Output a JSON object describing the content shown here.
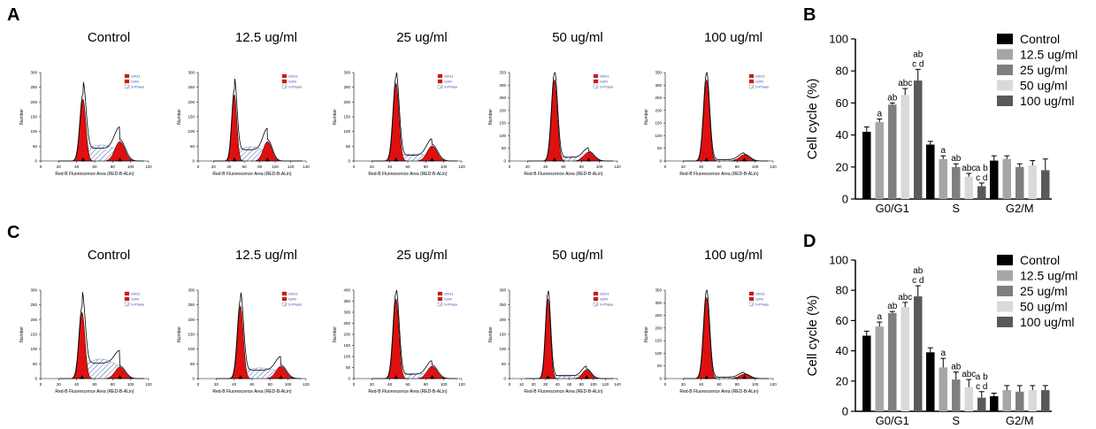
{
  "panels": {
    "A": {
      "letter": "A"
    },
    "B": {
      "letter": "B"
    },
    "C": {
      "letter": "C"
    },
    "D": {
      "letter": "D"
    }
  },
  "colors": {
    "g0g1_fill": "#e01010",
    "s_phase_hatch": "#4a5fb0",
    "trace": "#000000",
    "bar_control": "#000000",
    "bar_12_5": "#a6a6a6",
    "bar_25": "#7f7f7f",
    "bar_50": "#d9d9d9",
    "bar_100": "#595959"
  },
  "histogram_xlabel": "Red-B Fluorescence Area (RED-B-ALin)",
  "histogram_ylabel": "Number",
  "histogram_legend": [
    "G0G1",
    "G2M",
    "S-Phase"
  ],
  "chart_data": [
    {
      "type": "histogram",
      "panel": "A",
      "histograms": [
        {
          "title": "Control",
          "xticks": [
            "0",
            "20",
            "40",
            "60",
            "80",
            "100",
            "120"
          ],
          "yticks": [
            "0",
            "50",
            "100",
            "150",
            "200",
            "250",
            "300"
          ],
          "g1_peak_x": 47,
          "g2_peak_x": 88,
          "g1_height": 0.7,
          "g2_height": 0.22,
          "s_level": 0.18,
          "xmax": 120
        },
        {
          "title": "12.5 ug/ml",
          "xticks": [
            "0",
            "20",
            "40",
            "60",
            "80",
            "100",
            "120",
            "140"
          ],
          "yticks": [
            "0",
            "50",
            "100",
            "150",
            "200",
            "250",
            "300"
          ],
          "g1_peak_x": 47,
          "g2_peak_x": 90,
          "g1_height": 0.75,
          "g2_height": 0.22,
          "s_level": 0.16,
          "xmax": 140
        },
        {
          "title": "25 ug/ml",
          "xticks": [
            "0",
            "20",
            "40",
            "60",
            "80",
            "100",
            "120"
          ],
          "yticks": [
            "0",
            "50",
            "100",
            "150",
            "200",
            "250",
            "300"
          ],
          "g1_peak_x": 47,
          "g2_peak_x": 87,
          "g1_height": 0.88,
          "g2_height": 0.17,
          "s_level": 0.08,
          "xmax": 120
        },
        {
          "title": "50 ug/ml",
          "xticks": [
            "0",
            "20",
            "40",
            "60",
            "80",
            "100",
            "120"
          ],
          "yticks": [
            "0",
            "50",
            "100",
            "150",
            "200",
            "250",
            "300",
            "333"
          ],
          "g1_peak_x": 50,
          "g2_peak_x": 88,
          "g1_height": 0.92,
          "g2_height": 0.1,
          "s_level": 0.05,
          "xmax": 120
        },
        {
          "title": "100 ug/ml",
          "xticks": [
            "0",
            "20",
            "40",
            "60",
            "80",
            "100",
            "120"
          ],
          "yticks": [
            "0",
            "50",
            "100",
            "150",
            "200",
            "250",
            "300",
            "350"
          ],
          "g1_peak_x": 46,
          "g2_peak_x": 88,
          "g1_height": 0.92,
          "g2_height": 0.07,
          "s_level": 0.02,
          "xmax": 120
        }
      ]
    },
    {
      "type": "bar",
      "panel": "B",
      "categories": [
        "G0/G1",
        "S",
        "G2/M"
      ],
      "series": [
        {
          "name": "Control",
          "values": [
            42,
            34,
            24
          ],
          "errors": [
            3,
            2,
            3
          ]
        },
        {
          "name": "12.5 ug/ml",
          "values": [
            48,
            25,
            25
          ],
          "errors": [
            2,
            2,
            2
          ]
        },
        {
          "name": "25 ug/ml",
          "values": [
            59,
            20,
            20
          ],
          "errors": [
            1,
            2,
            2
          ]
        },
        {
          "name": "50 ug/ml",
          "values": [
            65,
            14,
            21
          ],
          "errors": [
            4,
            2,
            3
          ]
        },
        {
          "name": "100 ug/ml",
          "values": [
            74,
            8,
            18
          ],
          "errors": [
            7,
            2,
            7
          ]
        }
      ],
      "annotations": [
        {
          "category": 0,
          "series": 1,
          "text": [
            "a"
          ]
        },
        {
          "category": 0,
          "series": 2,
          "text": [
            "ab"
          ]
        },
        {
          "category": 0,
          "series": 3,
          "text": [
            "abc"
          ]
        },
        {
          "category": 0,
          "series": 4,
          "text": [
            "ab",
            "c d"
          ]
        },
        {
          "category": 1,
          "series": 1,
          "text": [
            "a"
          ]
        },
        {
          "category": 1,
          "series": 2,
          "text": [
            "ab"
          ]
        },
        {
          "category": 1,
          "series": 3,
          "text": [
            "abc"
          ]
        },
        {
          "category": 1,
          "series": 4,
          "text": [
            "a b",
            "c d"
          ]
        }
      ],
      "ylabel": "Cell cycle (%)",
      "ylim": [
        0,
        100
      ],
      "yticks": [
        0,
        20,
        40,
        60,
        80,
        100
      ],
      "legend": "top-right"
    },
    {
      "type": "histogram",
      "panel": "C",
      "histograms": [
        {
          "title": "Control",
          "xticks": [
            "0",
            "20",
            "40",
            "60",
            "80",
            "100",
            "120"
          ],
          "yticks": [
            "0",
            "50",
            "100",
            "150",
            "200",
            "250",
            "300"
          ],
          "g1_peak_x": 46,
          "g2_peak_x": 88,
          "g1_height": 0.75,
          "g2_height": 0.13,
          "s_level": 0.22,
          "xmax": 120
        },
        {
          "title": "12.5 ug/ml",
          "xticks": [
            "0",
            "20",
            "40",
            "60",
            "80",
            "100",
            "120"
          ],
          "yticks": [
            "0",
            "50",
            "100",
            "150",
            "200",
            "250",
            "300"
          ],
          "g1_peak_x": 47,
          "g2_peak_x": 92,
          "g1_height": 0.82,
          "g2_height": 0.14,
          "s_level": 0.12,
          "xmax": 120
        },
        {
          "title": "25 ug/ml",
          "xticks": [
            "0",
            "20",
            "40",
            "60",
            "80",
            "100",
            "120"
          ],
          "yticks": [
            "0",
            "50",
            "100",
            "150",
            "200",
            "250",
            "300",
            "350",
            "400"
          ],
          "g1_peak_x": 47,
          "g2_peak_x": 87,
          "g1_height": 0.9,
          "g2_height": 0.14,
          "s_level": 0.06,
          "xmax": 120
        },
        {
          "title": "50 ug/ml",
          "xticks": [
            "0",
            "10",
            "20",
            "30",
            "40",
            "60",
            "80",
            "100",
            "120",
            "140"
          ],
          "yticks": [
            "0",
            "50",
            "100",
            "150",
            "200",
            "250",
            "300"
          ],
          "g1_peak_x": 50,
          "g2_peak_x": 100,
          "g1_height": 0.9,
          "g2_height": 0.1,
          "s_level": 0.04,
          "xmax": 140
        },
        {
          "title": "100 ug/ml",
          "xticks": [
            "0",
            "20",
            "40",
            "60",
            "80",
            "100",
            "120"
          ],
          "yticks": [
            "0",
            "50",
            "100",
            "150",
            "200",
            "250",
            "300",
            "350"
          ],
          "g1_peak_x": 46,
          "g2_peak_x": 88,
          "g1_height": 0.92,
          "g2_height": 0.05,
          "s_level": 0.02,
          "xmax": 120
        }
      ]
    },
    {
      "type": "bar",
      "panel": "D",
      "categories": [
        "G0/G1",
        "S",
        "G2/M"
      ],
      "series": [
        {
          "name": "Control",
          "values": [
            50,
            39,
            10
          ],
          "errors": [
            3,
            3,
            2
          ]
        },
        {
          "name": "12.5 ug/ml",
          "values": [
            56,
            29,
            14
          ],
          "errors": [
            3,
            6,
            3
          ]
        },
        {
          "name": "25 ug/ml",
          "values": [
            65,
            21,
            13
          ],
          "errors": [
            1,
            5,
            4
          ]
        },
        {
          "name": "50 ug/ml",
          "values": [
            69,
            16,
            14
          ],
          "errors": [
            3,
            5,
            3
          ]
        },
        {
          "name": "100 ug/ml",
          "values": [
            76,
            9,
            14
          ],
          "errors": [
            7,
            4,
            3
          ]
        }
      ],
      "annotations": [
        {
          "category": 0,
          "series": 1,
          "text": [
            "a"
          ]
        },
        {
          "category": 0,
          "series": 2,
          "text": [
            "ab"
          ]
        },
        {
          "category": 0,
          "series": 3,
          "text": [
            "abc"
          ]
        },
        {
          "category": 0,
          "series": 4,
          "text": [
            "ab",
            "c d"
          ]
        },
        {
          "category": 1,
          "series": 1,
          "text": [
            "a"
          ]
        },
        {
          "category": 1,
          "series": 2,
          "text": [
            "ab"
          ]
        },
        {
          "category": 1,
          "series": 3,
          "text": [
            "abc"
          ]
        },
        {
          "category": 1,
          "series": 4,
          "text": [
            "a b",
            "c d"
          ]
        }
      ],
      "ylabel": "Cell cycle (%)",
      "ylim": [
        0,
        100
      ],
      "yticks": [
        0,
        20,
        40,
        60,
        80,
        100
      ],
      "legend": "top-right"
    }
  ]
}
